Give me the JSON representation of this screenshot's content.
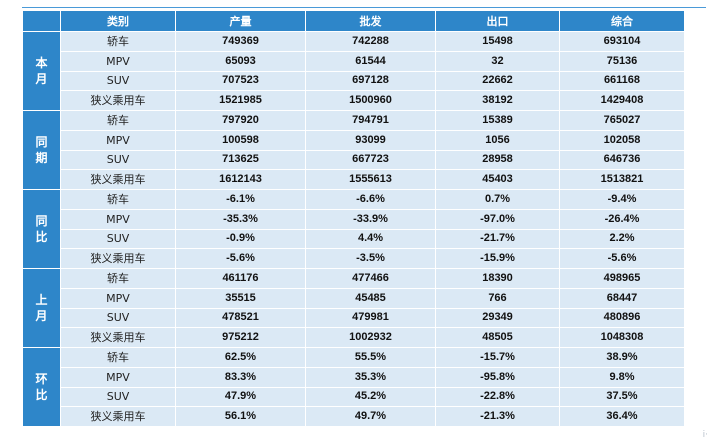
{
  "table": {
    "header": [
      "类别",
      "产量",
      "批发",
      "出口",
      "综合"
    ],
    "groups": [
      {
        "label": "本月",
        "rows": [
          {
            "type": "轿车",
            "values": [
              "749369",
              "742288",
              "15498",
              "693104"
            ]
          },
          {
            "type": "MPV",
            "values": [
              "65093",
              "61544",
              "32",
              "75136"
            ]
          },
          {
            "type": "SUV",
            "values": [
              "707523",
              "697128",
              "22662",
              "661168"
            ]
          },
          {
            "type": "狭义乘用车",
            "values": [
              "1521985",
              "1500960",
              "38192",
              "1429408"
            ]
          }
        ]
      },
      {
        "label": "同期",
        "rows": [
          {
            "type": "轿车",
            "values": [
              "797920",
              "794791",
              "15389",
              "765027"
            ]
          },
          {
            "type": "MPV",
            "values": [
              "100598",
              "93099",
              "1056",
              "102058"
            ]
          },
          {
            "type": "SUV",
            "values": [
              "713625",
              "667723",
              "28958",
              "646736"
            ]
          },
          {
            "type": "狭义乘用车",
            "values": [
              "1612143",
              "1555613",
              "45403",
              "1513821"
            ]
          }
        ]
      },
      {
        "label": "同比",
        "rows": [
          {
            "type": "轿车",
            "values": [
              "-6.1%",
              "-6.6%",
              "0.7%",
              "-9.4%"
            ]
          },
          {
            "type": "MPV",
            "values": [
              "-35.3%",
              "-33.9%",
              "-97.0%",
              "-26.4%"
            ]
          },
          {
            "type": "SUV",
            "values": [
              "-0.9%",
              "4.4%",
              "-21.7%",
              "2.2%"
            ]
          },
          {
            "type": "狭义乘用车",
            "values": [
              "-5.6%",
              "-3.5%",
              "-15.9%",
              "-5.6%"
            ]
          }
        ]
      },
      {
        "label": "上月",
        "rows": [
          {
            "type": "轿车",
            "values": [
              "461176",
              "477466",
              "18390",
              "498965"
            ]
          },
          {
            "type": "MPV",
            "values": [
              "35515",
              "45485",
              "766",
              "68447"
            ]
          },
          {
            "type": "SUV",
            "values": [
              "478521",
              "479981",
              "29349",
              "480896"
            ]
          },
          {
            "type": "狭义乘用车",
            "values": [
              "975212",
              "1002932",
              "48505",
              "1048308"
            ]
          }
        ]
      },
      {
        "label": "环比",
        "rows": [
          {
            "type": "轿车",
            "values": [
              "62.5%",
              "55.5%",
              "-15.7%",
              "38.9%"
            ]
          },
          {
            "type": "MPV",
            "values": [
              "83.3%",
              "35.3%",
              "-95.8%",
              "9.8%"
            ]
          },
          {
            "type": "SUV",
            "values": [
              "47.9%",
              "45.2%",
              "-22.8%",
              "37.5%"
            ]
          },
          {
            "type": "狭义乘用车",
            "values": [
              "56.1%",
              "49.7%",
              "-21.3%",
              "36.4%"
            ]
          }
        ]
      }
    ]
  },
  "colors": {
    "header_bg": "#2e86c9",
    "cell_bg": "#dbe9f5",
    "top_rule": "#4a9ad8"
  },
  "corner_mark": "i·"
}
